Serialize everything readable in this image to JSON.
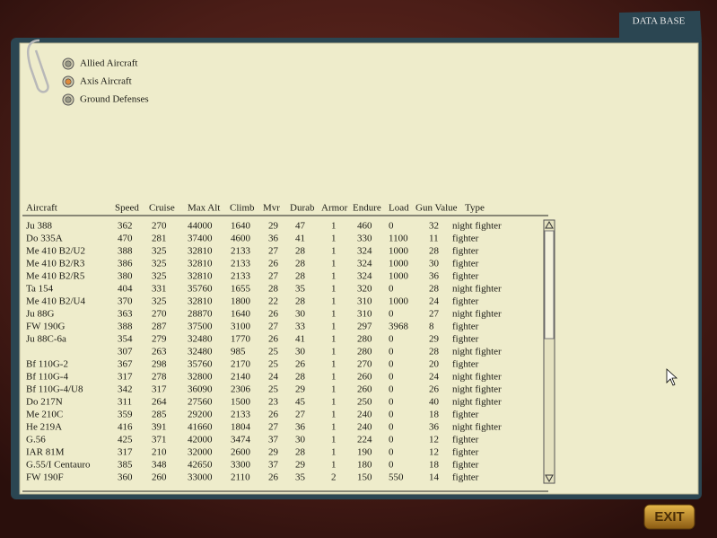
{
  "header": {
    "title": "DATA BASE"
  },
  "options": [
    {
      "label": "Allied Aircraft",
      "selected": false
    },
    {
      "label": "Axis Aircraft",
      "selected": true
    },
    {
      "label": "Ground Defenses",
      "selected": false
    }
  ],
  "table": {
    "columns": [
      "Aircraft",
      "Speed",
      "Cruise",
      "Max Alt",
      "Climb",
      "Mvr",
      "Durab",
      "Armor",
      "Endure",
      "Load",
      "Gun Value",
      "Type"
    ],
    "rows": [
      [
        "Ju 388",
        362,
        270,
        44000,
        1640,
        29,
        47,
        1,
        460,
        0,
        32,
        "night fighter"
      ],
      [
        "Do 335A",
        470,
        281,
        37400,
        4600,
        36,
        41,
        1,
        330,
        1100,
        11,
        "fighter"
      ],
      [
        "Me 410 B2/U2",
        388,
        325,
        32810,
        2133,
        27,
        28,
        1,
        324,
        1000,
        28,
        "fighter"
      ],
      [
        "Me 410 B2/R3",
        386,
        325,
        32810,
        2133,
        26,
        28,
        1,
        324,
        1000,
        30,
        "fighter"
      ],
      [
        "Me 410 B2/R5",
        380,
        325,
        32810,
        2133,
        27,
        28,
        1,
        324,
        1000,
        36,
        "fighter"
      ],
      [
        "Ta 154",
        404,
        331,
        35760,
        1655,
        28,
        35,
        1,
        320,
        0,
        28,
        "night fighter"
      ],
      [
        "Me 410 B2/U4",
        370,
        325,
        32810,
        1800,
        22,
        28,
        1,
        310,
        1000,
        24,
        "fighter"
      ],
      [
        "Ju 88G",
        363,
        270,
        28870,
        1640,
        26,
        30,
        1,
        310,
        0,
        27,
        "night fighter"
      ],
      [
        "FW 190G",
        388,
        287,
        37500,
        3100,
        27,
        33,
        1,
        297,
        3968,
        8,
        "fighter"
      ],
      [
        "Ju 88C-6a",
        354,
        279,
        32480,
        1770,
        26,
        41,
        1,
        280,
        0,
        29,
        "fighter"
      ],
      [
        null,
        307,
        263,
        32480,
        985,
        25,
        30,
        1,
        280,
        0,
        28,
        "night fighter"
      ],
      [
        "Bf 110G-2",
        367,
        298,
        35760,
        2170,
        25,
        26,
        1,
        270,
        0,
        20,
        "fighter"
      ],
      [
        "Bf 110G-4",
        317,
        278,
        32800,
        2140,
        24,
        28,
        1,
        260,
        0,
        24,
        "night fighter"
      ],
      [
        "Bf 110G-4/U8",
        342,
        317,
        36090,
        2306,
        25,
        29,
        1,
        260,
        0,
        26,
        "night fighter"
      ],
      [
        "Do 217N",
        311,
        264,
        27560,
        1500,
        23,
        45,
        1,
        250,
        0,
        40,
        "night fighter"
      ],
      [
        "Me 210C",
        359,
        285,
        29200,
        2133,
        26,
        27,
        1,
        240,
        0,
        18,
        "fighter"
      ],
      [
        "He 219A",
        416,
        391,
        41660,
        1804,
        27,
        36,
        1,
        240,
        0,
        36,
        "night fighter"
      ],
      [
        "G.56",
        425,
        371,
        42000,
        3474,
        37,
        30,
        1,
        224,
        0,
        12,
        "fighter"
      ],
      [
        "IAR 81M",
        317,
        210,
        32000,
        2600,
        29,
        28,
        1,
        190,
        0,
        12,
        "fighter"
      ],
      [
        "G.55/I Centauro",
        385,
        348,
        42650,
        3300,
        37,
        29,
        1,
        180,
        0,
        18,
        "fighter"
      ],
      [
        "FW 190F",
        360,
        260,
        33000,
        2110,
        26,
        35,
        2,
        150,
        550,
        14,
        "fighter"
      ]
    ]
  },
  "exit_button": "EXIT"
}
